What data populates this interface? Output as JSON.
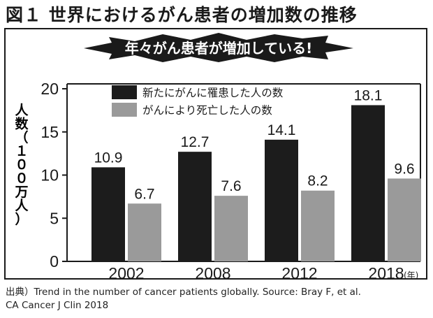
{
  "title": "図１ 世界におけるがん患者の増加数の推移",
  "banner": "年々がん患者が増加している!",
  "source": {
    "line1": "出典）Trend in the number of cancer patients globally. Source: Bray F, et al.",
    "line2": "CA Cancer J Clin 2018"
  },
  "colors": {
    "series_new": "#1c1c1c",
    "series_death": "#9a9a9a",
    "banner_bg": "#1a1a1a",
    "banner_text": "#ffffff"
  },
  "chart_data": {
    "type": "bar",
    "categories": [
      "2002",
      "2008",
      "2012",
      "2018"
    ],
    "x_unit": "(年)",
    "series": [
      {
        "name": "新たにがんに罹患した人の数",
        "values": [
          10.9,
          12.7,
          14.1,
          18.1
        ],
        "labels": [
          "10.9",
          "12.7",
          "14.1",
          "18.1"
        ]
      },
      {
        "name": "がんにより死亡した人の数",
        "values": [
          6.7,
          7.6,
          8.2,
          9.6
        ],
        "labels": [
          "6.7",
          "7.6",
          "8.2",
          "9.6"
        ]
      }
    ],
    "ylabel": "人数（１００万人）",
    "ylim": [
      0,
      20
    ],
    "yticks": [
      "0",
      "5",
      "10",
      "15",
      "20"
    ],
    "grid": false,
    "legend_position": "top-left"
  }
}
